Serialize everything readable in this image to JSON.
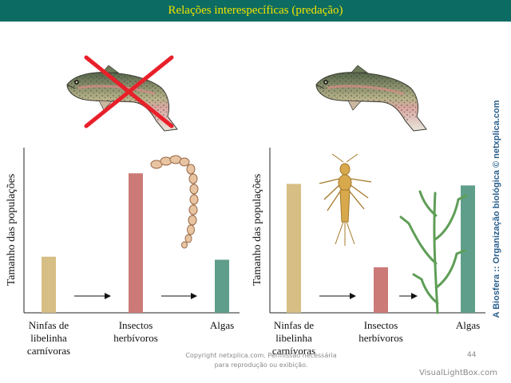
{
  "title": "Relações interespecíficas (predação)",
  "side_credit": "A Biosfera :: Organização biológica © netxplica.com",
  "copyright": "Copyright netxplica.com. Permissão necessária para reprodução ou exibição.",
  "page_number": "44",
  "watermark": "VisualLightBox.com",
  "colors": {
    "title_bg": "#0c6b63",
    "title_text": "#f2e400",
    "side_text": "#2a5f8c",
    "cross": "#e8202a"
  },
  "chart_data": [
    {
      "type": "bar",
      "ylabel": "Tamanho das populações",
      "categories": [
        "Ninfas de libelinha carnívoras",
        "Insectos herbívoros",
        "Algas"
      ],
      "category_lines": [
        [
          "Ninfas de",
          "libelinha",
          "carnívoras"
        ],
        [
          "Insectos",
          "herbívoros"
        ],
        [
          "Algas"
        ]
      ],
      "values": [
        37,
        92,
        35
      ],
      "colors": [
        "#d6be84",
        "#cc7a78",
        "#5f9e8a"
      ],
      "ylim": [
        0,
        100
      ],
      "predator_removed": true
    },
    {
      "type": "bar",
      "ylabel": "Tamanho das populações",
      "categories": [
        "Ninfas de libelinha carnívoras",
        "Insectos herbívoros",
        "Algas"
      ],
      "category_lines": [
        [
          "Ninfas de",
          "libelinha",
          "carnívoras"
        ],
        [
          "Insectos",
          "herbívoros"
        ],
        [
          "Algas"
        ]
      ],
      "values": [
        85,
        30,
        84
      ],
      "colors": [
        "#d6be84",
        "#cc7a78",
        "#5f9e8a"
      ],
      "ylim": [
        0,
        100
      ],
      "predator_removed": false
    }
  ]
}
